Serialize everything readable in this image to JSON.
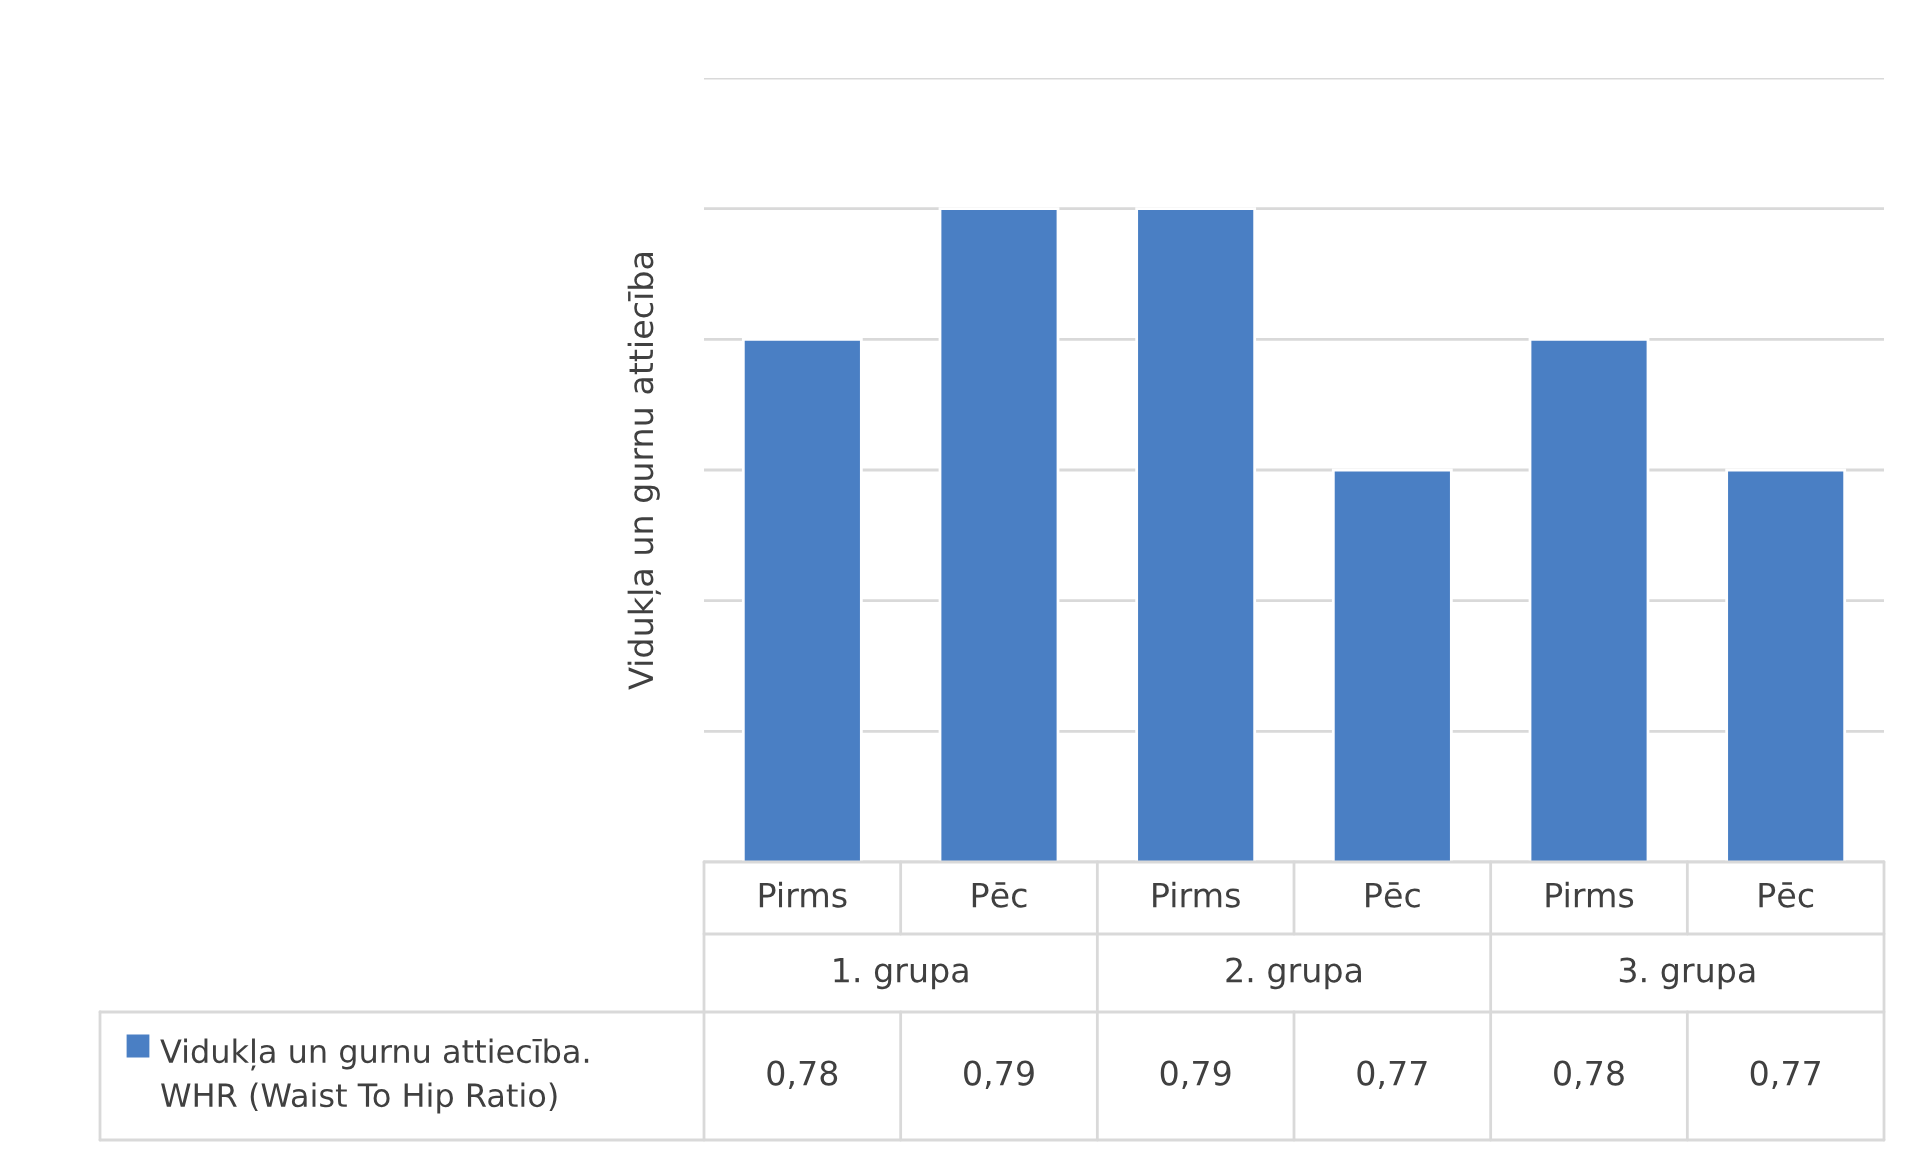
{
  "chart_data": {
    "type": "bar",
    "ylabel": "Vidukļa un gurnu attiecība",
    "categories": [
      "Pirms",
      "Pēc",
      "Pirms",
      "Pēc",
      "Pirms",
      "Pēc"
    ],
    "series": [
      {
        "name": "Vidukļa un gurnu attiecība. WHR (Waist To Hip Ratio)",
        "color": "#4a7fc4",
        "values": [
          0.78,
          0.79,
          0.79,
          0.77,
          0.78,
          0.77
        ],
        "value_labels": [
          "0,78",
          "0,79",
          "0,79",
          "0,77",
          "0,78",
          "0,77"
        ]
      }
    ],
    "annotations": [
      "1. grupa",
      "2. grupa",
      "3. grupa"
    ],
    "ylim": [
      0.74,
      0.8
    ],
    "yticks": [
      {
        "value": 0.74,
        "label": null
      },
      {
        "value": 0.75,
        "label": null
      },
      {
        "value": 0.76,
        "label": null
      },
      {
        "value": 0.77,
        "label": null
      },
      {
        "value": 0.78,
        "label": null
      },
      {
        "value": 0.79,
        "label": null
      },
      {
        "value": 0.8,
        "label": null
      }
    ],
    "grid": "y",
    "legend": "bottom"
  }
}
